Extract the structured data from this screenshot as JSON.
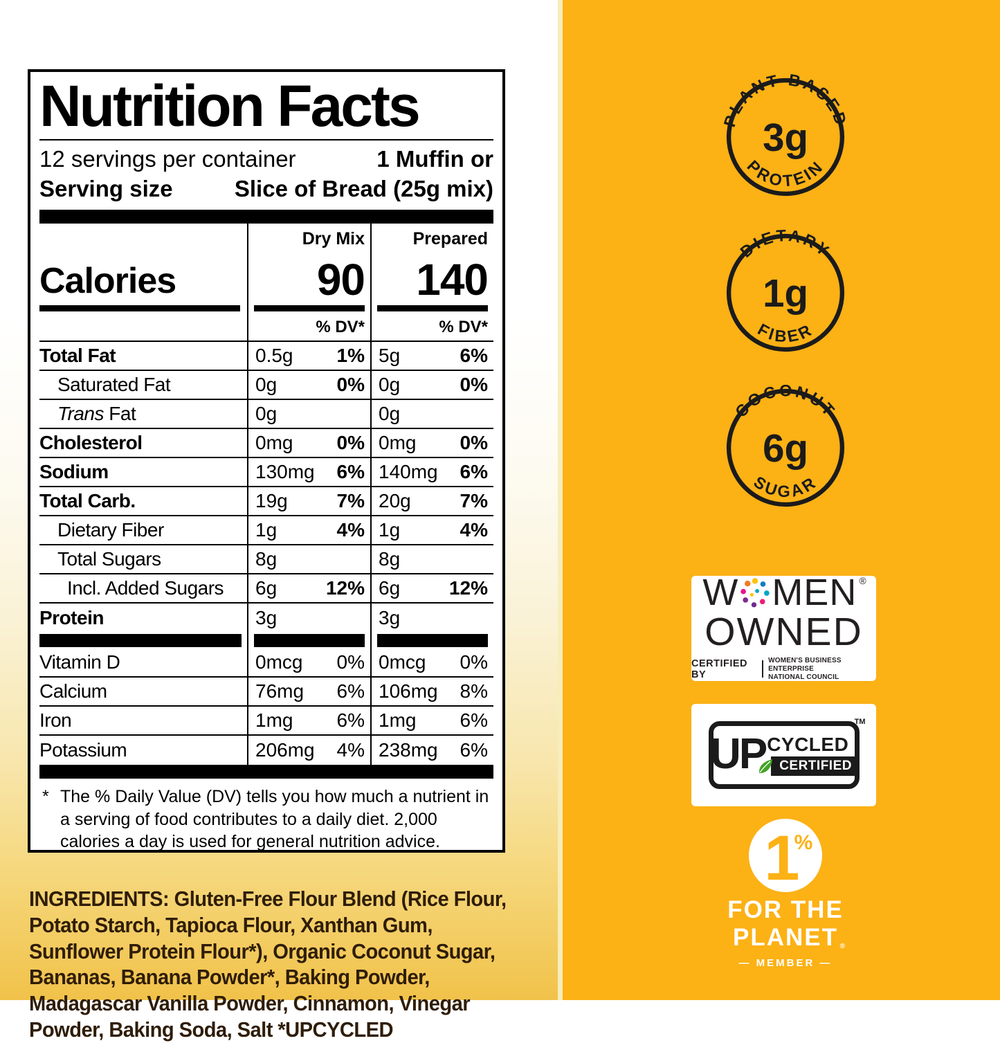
{
  "colors": {
    "amber": "#fcb115",
    "ink": "#000000",
    "ingredients_ink": "#2f1d08",
    "leaf_green": "#43a425"
  },
  "nutrition": {
    "title": "Nutrition Facts",
    "servings_line": "12 servings per container",
    "serving_size_label": "Serving size",
    "serving_size_value_l1": "1 Muffin or",
    "serving_size_value_l2": "Slice of Bread (25g mix)",
    "dry_header": "Dry Mix",
    "prepared_header": "Prepared",
    "calories_label": "Calories",
    "calories_dry": "90",
    "calories_prepared": "140",
    "dv_header": "% DV*",
    "rows": [
      {
        "name": "Total Fat",
        "bold": true,
        "indent": 0,
        "dry_amount": "0.5g",
        "dry_dv": "1%",
        "prep_amount": "5g",
        "prep_dv": "6%"
      },
      {
        "name": "Saturated Fat",
        "bold": false,
        "indent": 1,
        "dry_amount": "0g",
        "dry_dv": "0%",
        "prep_amount": "0g",
        "prep_dv": "0%"
      },
      {
        "name": "Fat",
        "italic_prefix": "Trans",
        "bold": false,
        "indent": 1,
        "dry_amount": "0g",
        "dry_dv": "",
        "prep_amount": "0g",
        "prep_dv": ""
      },
      {
        "name": "Cholesterol",
        "bold": true,
        "indent": 0,
        "dry_amount": "0mg",
        "dry_dv": "0%",
        "prep_amount": "0mg",
        "prep_dv": "0%"
      },
      {
        "name": "Sodium",
        "bold": true,
        "indent": 0,
        "dry_amount": "130mg",
        "dry_dv": "6%",
        "prep_amount": "140mg",
        "prep_dv": "6%"
      },
      {
        "name": "Total Carb.",
        "bold": true,
        "indent": 0,
        "dry_amount": "19g",
        "dry_dv": "7%",
        "prep_amount": "20g",
        "prep_dv": "7%"
      },
      {
        "name": "Dietary Fiber",
        "bold": false,
        "indent": 1,
        "dry_amount": "1g",
        "dry_dv": "4%",
        "prep_amount": "1g",
        "prep_dv": "4%"
      },
      {
        "name": "Total Sugars",
        "bold": false,
        "indent": 1,
        "dry_amount": "8g",
        "dry_dv": "",
        "prep_amount": "8g",
        "prep_dv": ""
      },
      {
        "name": "Incl. Added Sugars",
        "bold": false,
        "indent": 2,
        "dry_amount": "6g",
        "dry_dv": "12%",
        "prep_amount": "6g",
        "prep_dv": "12%"
      },
      {
        "name": "Protein",
        "bold": true,
        "indent": 0,
        "dry_amount": "3g",
        "dry_dv": "",
        "prep_amount": "3g",
        "prep_dv": ""
      },
      {
        "type": "bar"
      },
      {
        "name": "Vitamin D",
        "bold": false,
        "indent": 0,
        "dv_bold": false,
        "dry_amount": "0mcg",
        "dry_dv": "0%",
        "prep_amount": "0mcg",
        "prep_dv": "0%"
      },
      {
        "name": "Calcium",
        "bold": false,
        "indent": 0,
        "dv_bold": false,
        "dry_amount": "76mg",
        "dry_dv": "6%",
        "prep_amount": "106mg",
        "prep_dv": "8%"
      },
      {
        "name": "Iron",
        "bold": false,
        "indent": 0,
        "dv_bold": false,
        "dry_amount": "1mg",
        "dry_dv": "6%",
        "prep_amount": "1mg",
        "prep_dv": "6%"
      },
      {
        "name": "Potassium",
        "bold": false,
        "indent": 0,
        "dv_bold": false,
        "dry_amount": "206mg",
        "dry_dv": "4%",
        "prep_amount": "238mg",
        "prep_dv": "6%"
      }
    ],
    "footnote_ast": "*",
    "footnote": "The % Daily Value (DV) tells you how much a nutrient in a serving of food contributes to a daily diet. 2,000 calories a day is used for general nutrition advice."
  },
  "ingredients": {
    "label": "INGREDIENTS:",
    "text": " Gluten-Free Flour Blend (Rice Flour, Potato Starch, Tapioca Flour, Xanthan Gum, Sunflower Protein Flour*), Organic Coconut Sugar, Bananas, Banana Powder*, Baking Powder, Madagascar Vanilla Powder, Cinnamon, Vinegar Powder, Baking Soda, Salt ",
    "upcycled_note": "*UPCYCLED"
  },
  "badges": [
    {
      "top": "PLANT-BASED",
      "value": "3g",
      "bottom": "PROTEIN"
    },
    {
      "top": "DIETARY",
      "value": "1g",
      "bottom": "FIBER"
    },
    {
      "top": "COCONUT",
      "value": "6g",
      "bottom": "SUGAR"
    }
  ],
  "women_owned": {
    "w": "W",
    "men": "MEN",
    "reg": "®",
    "owned": "OWNED",
    "certified_by": "CERTIFIED BY",
    "org_line1": "WOMEN'S BUSINESS ENTERPRISE",
    "org_line2": "NATIONAL COUNCIL"
  },
  "upcycled": {
    "up": "UP",
    "cycled": "CYCLED",
    "certified": "CERTIFIED",
    "tm": "TM"
  },
  "one_percent": {
    "one": "1",
    "percent": "%",
    "line1": "FOR THE",
    "line2": "PLANET",
    "reg": "®",
    "member": "— MEMBER —"
  }
}
